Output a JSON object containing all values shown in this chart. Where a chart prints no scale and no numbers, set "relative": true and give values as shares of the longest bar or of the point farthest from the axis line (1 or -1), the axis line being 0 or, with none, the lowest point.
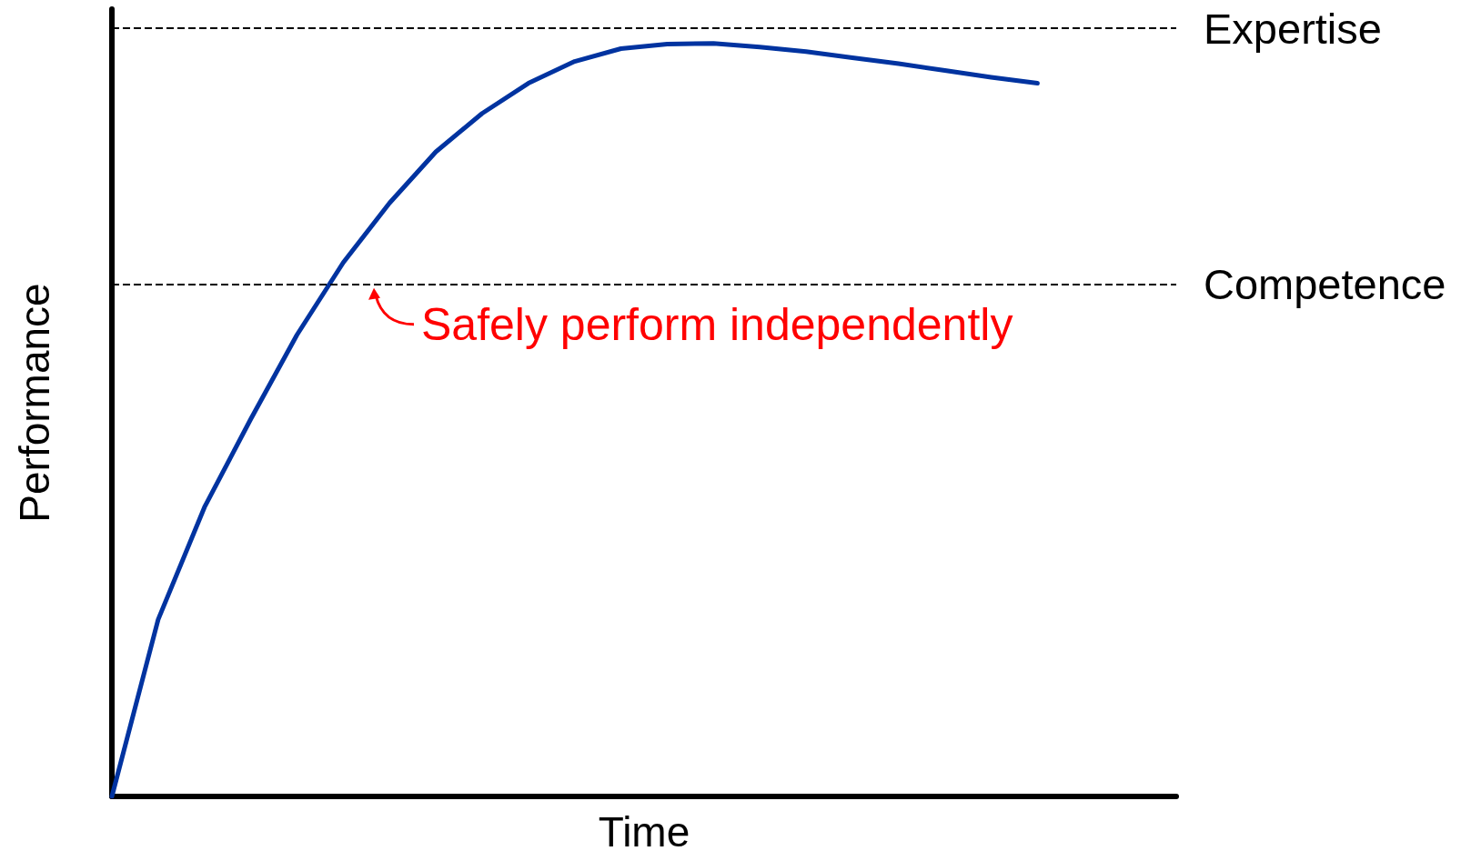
{
  "chart_data": {
    "type": "line",
    "relative": true,
    "xlabel": "Time",
    "ylabel": "Performance",
    "categories": [
      null,
      null,
      null,
      null,
      null,
      null,
      null,
      null,
      null,
      null,
      null,
      null,
      null,
      null,
      null,
      null,
      null,
      null,
      null,
      null,
      null,
      null,
      null,
      null
    ],
    "series": [
      {
        "color": "#0033a0",
        "values": [
          0,
          0.235,
          0.384,
          0.501,
          0.613,
          0.709,
          0.788,
          0.856,
          0.907,
          0.947,
          0.976,
          0.993,
          0.999,
          1,
          0.995,
          0.989,
          0.981,
          0.973,
          0.964,
          0.955,
          0.947,
          null,
          null,
          null
        ]
      }
    ],
    "ref_lines": [
      {
        "axis": "y",
        "value": 1.02,
        "label": "Expertise",
        "color": "#000000",
        "line_style": "dashed"
      },
      {
        "axis": "y",
        "value": 0.68,
        "label": "Competence",
        "color": "#000000",
        "line_style": "dashed"
      }
    ],
    "annotations": [
      "Safely perform independently"
    ],
    "grid": false,
    "marker": "none",
    "line_style": "solid"
  }
}
